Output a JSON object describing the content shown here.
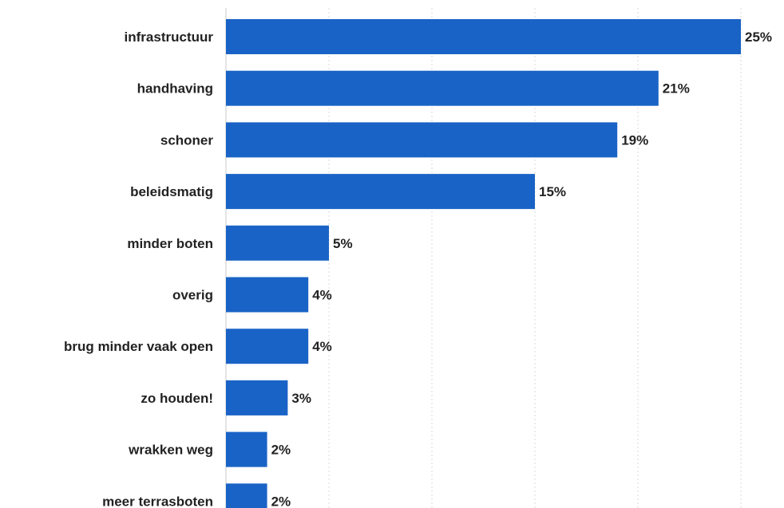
{
  "chart_data": {
    "type": "bar",
    "orientation": "horizontal",
    "categories": [
      "infrastructuur",
      "handhaving",
      "schoner",
      "beleidsmatig",
      "minder boten",
      "overig",
      "brug minder vaak open",
      "zo houden!",
      "wrakken weg",
      "meer terrasboten"
    ],
    "values": [
      25,
      21,
      19,
      15,
      5,
      4,
      4,
      3,
      2,
      2
    ],
    "value_labels": [
      "25%",
      "21%",
      "19%",
      "15%",
      "5%",
      "4%",
      "4%",
      "3%",
      "2%",
      "2%"
    ],
    "title": "",
    "xlabel": "",
    "ylabel": "",
    "xlim": [
      0,
      25
    ],
    "grid": true,
    "bar_color": "#1a63c6"
  }
}
